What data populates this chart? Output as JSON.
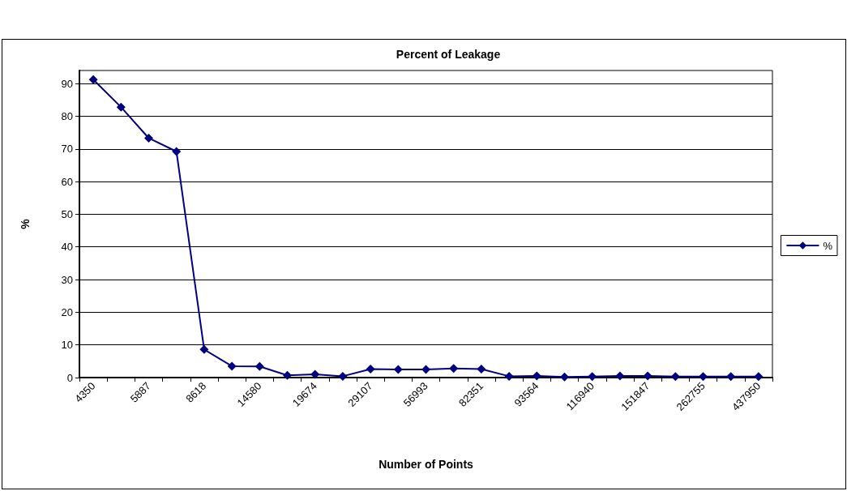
{
  "chart_data": {
    "type": "line",
    "title": "Percent of Leakage",
    "xlabel": "Number of Points",
    "ylabel": "%",
    "categories": [
      "4350",
      null,
      "5887",
      null,
      "8618",
      null,
      "14580",
      null,
      "19674",
      null,
      "29107",
      null,
      "56993",
      null,
      "82351",
      null,
      "93564",
      null,
      "116940",
      null,
      "151847",
      null,
      "262755",
      null,
      "437950"
    ],
    "series": [
      {
        "name": "%",
        "color": "#000080",
        "values": [
          91.2,
          82.8,
          73.3,
          69.2,
          8.6,
          3.5,
          3.4,
          0.7,
          1.0,
          0.4,
          2.6,
          2.5,
          2.5,
          2.8,
          2.6,
          0.4,
          0.5,
          0.2,
          0.3,
          0.5,
          0.5,
          0.3,
          0.3,
          0.3,
          0.3
        ]
      }
    ],
    "ylim": [
      0,
      94
    ],
    "yticks": [
      0,
      10,
      20,
      30,
      40,
      50,
      60,
      70,
      80,
      90
    ],
    "grid": "y",
    "legend": "right",
    "marker": "diamond",
    "line_style": "solid"
  }
}
